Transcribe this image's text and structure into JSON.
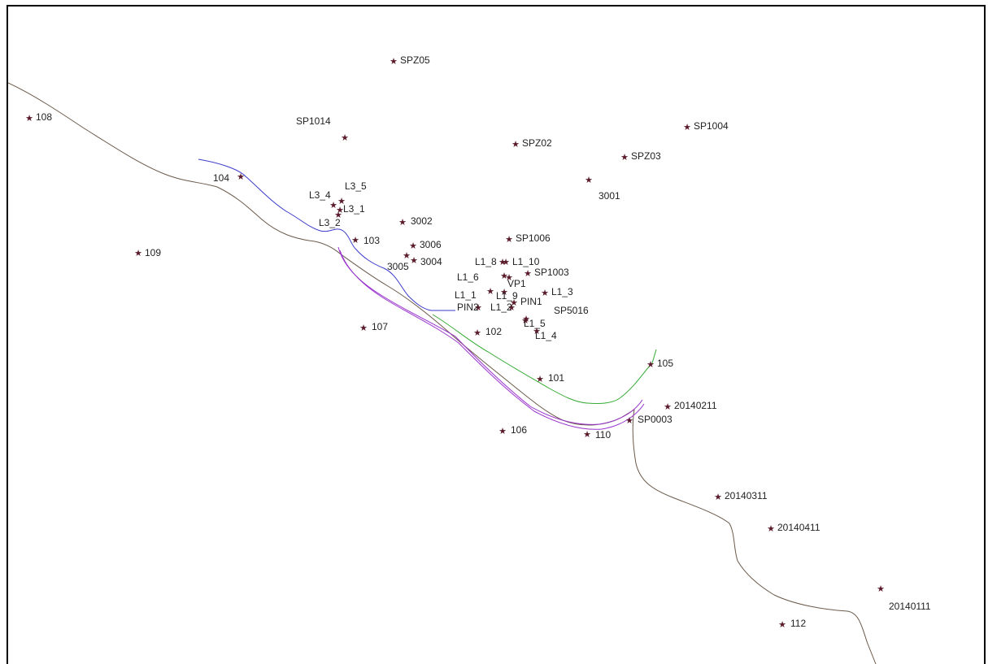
{
  "map": {
    "point_symbol": "★",
    "colors": {
      "points": "#5a1a2a",
      "labels": "#222222",
      "boundary": "#6b5a4a",
      "blue_line": "#3a3acc",
      "green_line": "#33aa33",
      "purple_line": "#9933cc",
      "frame": "#000000"
    },
    "points": [
      {
        "id": "108"
      },
      {
        "id": "SPZ05"
      },
      {
        "id": "SP1014"
      },
      {
        "id": "SPZ02"
      },
      {
        "id": "SP1004"
      },
      {
        "id": "SPZ03"
      },
      {
        "id": "3001"
      },
      {
        "id": "104"
      },
      {
        "id": "L3_4"
      },
      {
        "id": "L3_5"
      },
      {
        "id": "L3_1"
      },
      {
        "id": "L3_2"
      },
      {
        "id": "103"
      },
      {
        "id": "3002"
      },
      {
        "id": "109"
      },
      {
        "id": "3006"
      },
      {
        "id": "3005"
      },
      {
        "id": "3004"
      },
      {
        "id": "SP1006"
      },
      {
        "id": "L1_8"
      },
      {
        "id": "L1_10"
      },
      {
        "id": "L1_6"
      },
      {
        "id": "VP1"
      },
      {
        "id": "SP1003"
      },
      {
        "id": "L1_1"
      },
      {
        "id": "L1_9"
      },
      {
        "id": "L1_3"
      },
      {
        "id": "PIN2"
      },
      {
        "id": "L1_2"
      },
      {
        "id": "PIN1"
      },
      {
        "id": "SP5016"
      },
      {
        "id": "L1_5"
      },
      {
        "id": "L1_4"
      },
      {
        "id": "107"
      },
      {
        "id": "102"
      },
      {
        "id": "105"
      },
      {
        "id": "101"
      },
      {
        "id": "20140211"
      },
      {
        "id": "SP0003"
      },
      {
        "id": "106"
      },
      {
        "id": "110"
      },
      {
        "id": "20140311"
      },
      {
        "id": "20140411"
      },
      {
        "id": "20140111"
      },
      {
        "id": "112"
      }
    ]
  }
}
